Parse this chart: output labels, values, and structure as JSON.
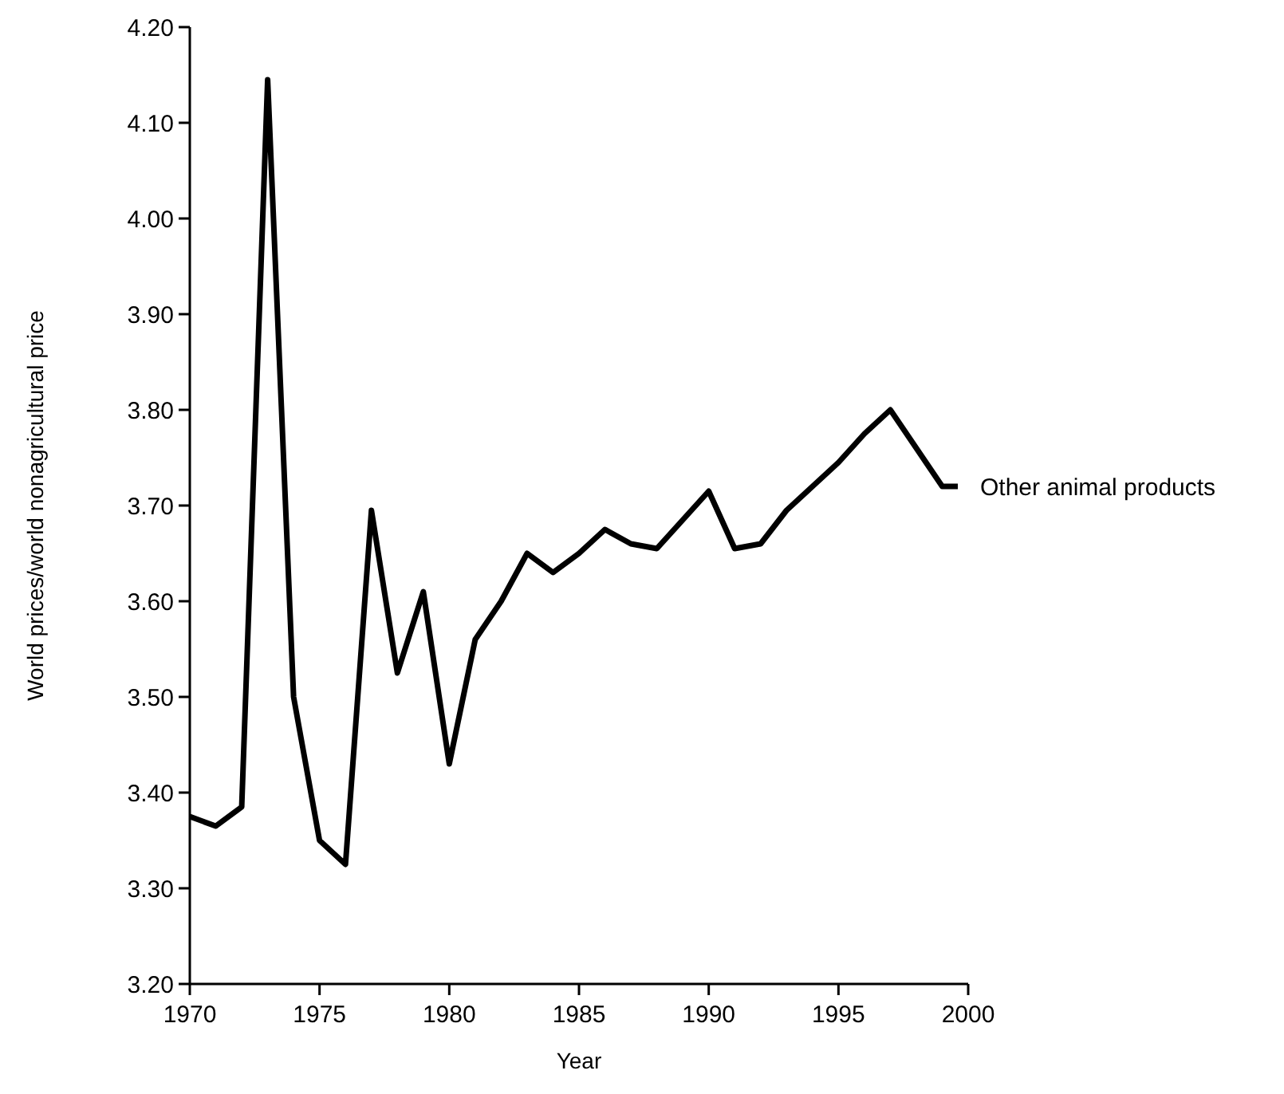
{
  "chart_data": {
    "type": "line",
    "xlabel": "Year",
    "ylabel": "World prices/world nonagricultural price",
    "x": [
      1970,
      1971,
      1972,
      1973,
      1974,
      1975,
      1976,
      1977,
      1978,
      1979,
      1980,
      1981,
      1982,
      1983,
      1984,
      1985,
      1986,
      1987,
      1988,
      1989,
      1990,
      1991,
      1992,
      1993,
      1994,
      1995,
      1996,
      1997,
      1998,
      1999,
      1999.6
    ],
    "series": [
      {
        "name": "Other animal products",
        "color": "#000000",
        "values": [
          3.375,
          3.365,
          3.385,
          4.145,
          3.5,
          3.35,
          3.325,
          3.695,
          3.525,
          3.61,
          3.43,
          3.56,
          3.6,
          3.65,
          3.63,
          3.65,
          3.675,
          3.66,
          3.655,
          3.685,
          3.715,
          3.655,
          3.66,
          3.695,
          3.72,
          3.745,
          3.775,
          3.8,
          3.76,
          3.72,
          3.72
        ]
      }
    ],
    "xlim": [
      1970,
      2000
    ],
    "xticks": [
      1970,
      1975,
      1980,
      1985,
      1990,
      1995,
      2000
    ],
    "ylim": [
      3.2,
      4.2
    ],
    "yticks": [
      {
        "value": 3.2,
        "label": "3.20"
      },
      {
        "value": 3.3,
        "label": "3.30"
      },
      {
        "value": 3.4,
        "label": "3.40"
      },
      {
        "value": 3.5,
        "label": "3.50"
      },
      {
        "value": 3.6,
        "label": "3.60"
      },
      {
        "value": 3.7,
        "label": "3.70"
      },
      {
        "value": 3.8,
        "label": "3.80"
      },
      {
        "value": 3.9,
        "label": "3.90"
      },
      {
        "value": 4.0,
        "label": "4.00"
      },
      {
        "value": 4.1,
        "label": "4.10"
      },
      {
        "value": 4.2,
        "label": "4.20"
      }
    ],
    "grid": false,
    "legend": false,
    "marker": "none",
    "line_style": "solid"
  }
}
